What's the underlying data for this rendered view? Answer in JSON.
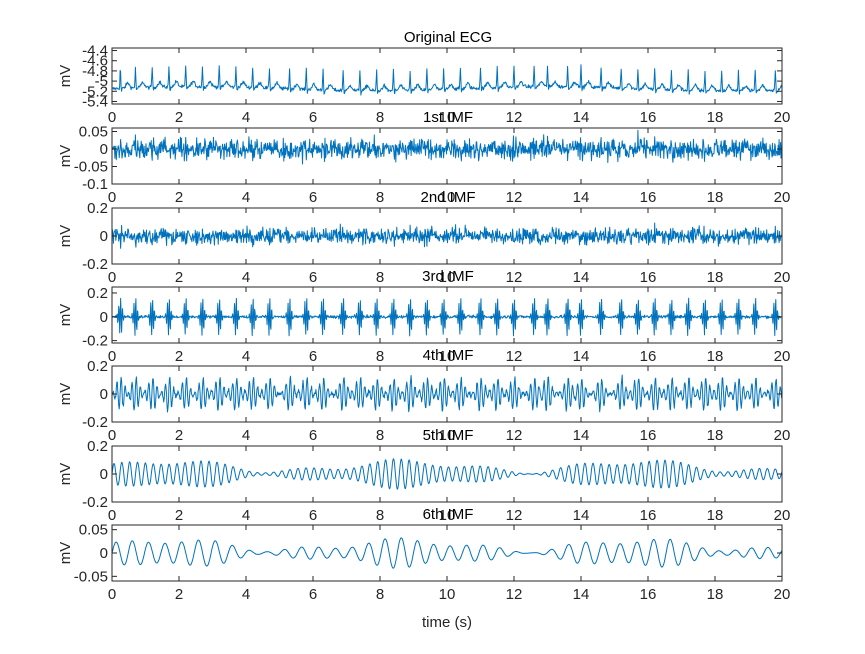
{
  "chart_data": [
    {
      "type": "line",
      "title": "Original ECG",
      "ylabel": "mV",
      "xlabel": "",
      "xlim": [
        0,
        20
      ],
      "ylim": [
        -5.45,
        -4.35
      ],
      "x_ticks": [
        0,
        2,
        4,
        6,
        8,
        10,
        12,
        14,
        16,
        18,
        20
      ],
      "x_tick_labels": [
        "0",
        "2",
        "4",
        "6",
        "8",
        "10",
        "12",
        "14",
        "16",
        "18",
        "20"
      ],
      "y_ticks": [
        -4.4,
        -4.6,
        -4.8,
        -5,
        -5.2,
        -5.4
      ],
      "y_tick_labels": [
        "-4.4",
        "-4.6",
        "-4.8",
        "-5",
        "-5.2",
        "-5.4"
      ],
      "series": [
        {
          "kind": "ecg",
          "baseline": -5.15,
          "r_peak": -4.75,
          "t_wave": 0.1,
          "noise": 0.03,
          "beats_s": [
            0.25,
            0.7,
            1.2,
            1.7,
            2.2,
            2.7,
            3.2,
            3.7,
            4.2,
            4.7,
            5.3,
            5.8,
            6.3,
            6.9,
            7.4,
            7.9,
            8.4,
            8.9,
            9.4,
            9.9,
            10.4,
            11.0,
            11.5,
            12.0,
            12.6,
            13.0,
            13.6,
            14.0,
            14.6,
            15.2,
            15.7,
            16.2,
            16.7,
            17.2,
            17.7,
            18.2,
            18.7,
            19.2,
            19.8
          ]
        }
      ]
    },
    {
      "type": "line",
      "title": "1st IMF",
      "ylabel": "mV",
      "xlabel": "",
      "xlim": [
        0,
        20
      ],
      "ylim": [
        -0.1,
        0.06
      ],
      "x_ticks": [
        0,
        2,
        4,
        6,
        8,
        10,
        12,
        14,
        16,
        18,
        20
      ],
      "x_tick_labels": [
        "0",
        "2",
        "4",
        "6",
        "8",
        "10",
        "12",
        "14",
        "16",
        "18",
        "20"
      ],
      "y_ticks": [
        0.05,
        0,
        -0.05,
        -0.1
      ],
      "y_tick_labels": [
        "0.05",
        "0",
        "-0.05",
        "-0.1"
      ],
      "series": [
        {
          "kind": "noise",
          "amplitude": 0.035
        }
      ]
    },
    {
      "type": "line",
      "title": "2nd IMF",
      "ylabel": "mV",
      "xlabel": "",
      "xlim": [
        0,
        20
      ],
      "ylim": [
        -0.2,
        0.2
      ],
      "x_ticks": [
        0,
        2,
        4,
        6,
        8,
        10,
        12,
        14,
        16,
        18,
        20
      ],
      "x_tick_labels": [
        "0",
        "2",
        "4",
        "6",
        "8",
        "10",
        "12",
        "14",
        "16",
        "18",
        "20"
      ],
      "y_ticks": [
        0.2,
        0,
        -0.2
      ],
      "y_tick_labels": [
        "0.2",
        "0",
        "-0.2"
      ],
      "series": [
        {
          "kind": "noise",
          "amplitude": 0.07
        }
      ]
    },
    {
      "type": "line",
      "title": "3rd IMF",
      "ylabel": "mV",
      "xlabel": "",
      "xlim": [
        0,
        20
      ],
      "ylim": [
        -0.22,
        0.25
      ],
      "x_ticks": [
        0,
        2,
        4,
        6,
        8,
        10,
        12,
        14,
        16,
        18,
        20
      ],
      "x_tick_labels": [
        "0",
        "2",
        "4",
        "6",
        "8",
        "10",
        "12",
        "14",
        "16",
        "18",
        "20"
      ],
      "y_ticks": [
        0.2,
        0,
        -0.2
      ],
      "y_tick_labels": [
        "0.2",
        "0",
        "-0.2"
      ],
      "series": [
        {
          "kind": "spikes",
          "amplitude": 0.17,
          "noise": 0.01,
          "freq": 18
        }
      ]
    },
    {
      "type": "line",
      "title": "4th IMF",
      "ylabel": "mV",
      "xlabel": "",
      "xlim": [
        0,
        20
      ],
      "ylim": [
        -0.2,
        0.2
      ],
      "x_ticks": [
        0,
        2,
        4,
        6,
        8,
        10,
        12,
        14,
        16,
        18,
        20
      ],
      "x_tick_labels": [
        "0",
        "2",
        "4",
        "6",
        "8",
        "10",
        "12",
        "14",
        "16",
        "18",
        "20"
      ],
      "y_ticks": [
        0.2,
        0,
        -0.2
      ],
      "y_tick_labels": [
        "0.2",
        "0",
        "-0.2"
      ],
      "series": [
        {
          "kind": "spikes",
          "amplitude": 0.12,
          "noise": 0.015,
          "freq": 8
        }
      ]
    },
    {
      "type": "line",
      "title": "5th IMF",
      "ylabel": "mV",
      "xlabel": "",
      "xlim": [
        0,
        20
      ],
      "ylim": [
        -0.2,
        0.2
      ],
      "x_ticks": [
        0,
        2,
        4,
        6,
        8,
        10,
        12,
        14,
        16,
        18,
        20
      ],
      "x_tick_labels": [
        "0",
        "2",
        "4",
        "6",
        "8",
        "10",
        "12",
        "14",
        "16",
        "18",
        "20"
      ],
      "y_ticks": [
        0.2,
        0,
        -0.2
      ],
      "y_tick_labels": [
        "0.2",
        "0",
        "-0.2"
      ],
      "series": [
        {
          "kind": "oscillation",
          "amplitude": 0.1,
          "freq": 4.2
        }
      ]
    },
    {
      "type": "line",
      "title": "6th IMF",
      "ylabel": "mV",
      "xlabel": "time (s)",
      "xlim": [
        0,
        20
      ],
      "ylim": [
        -0.06,
        0.06
      ],
      "x_ticks": [
        0,
        2,
        4,
        6,
        8,
        10,
        12,
        14,
        16,
        18,
        20
      ],
      "x_tick_labels": [
        "0",
        "2",
        "4",
        "6",
        "8",
        "10",
        "12",
        "14",
        "16",
        "18",
        "20"
      ],
      "y_ticks": [
        0.05,
        0,
        -0.05
      ],
      "y_tick_labels": [
        "0.05",
        "0",
        "-0.05"
      ],
      "series": [
        {
          "kind": "oscillation",
          "amplitude": 0.03,
          "freq": 2.0
        }
      ]
    }
  ],
  "colors": {
    "trace": "#0072BD",
    "axes": "#262626"
  }
}
